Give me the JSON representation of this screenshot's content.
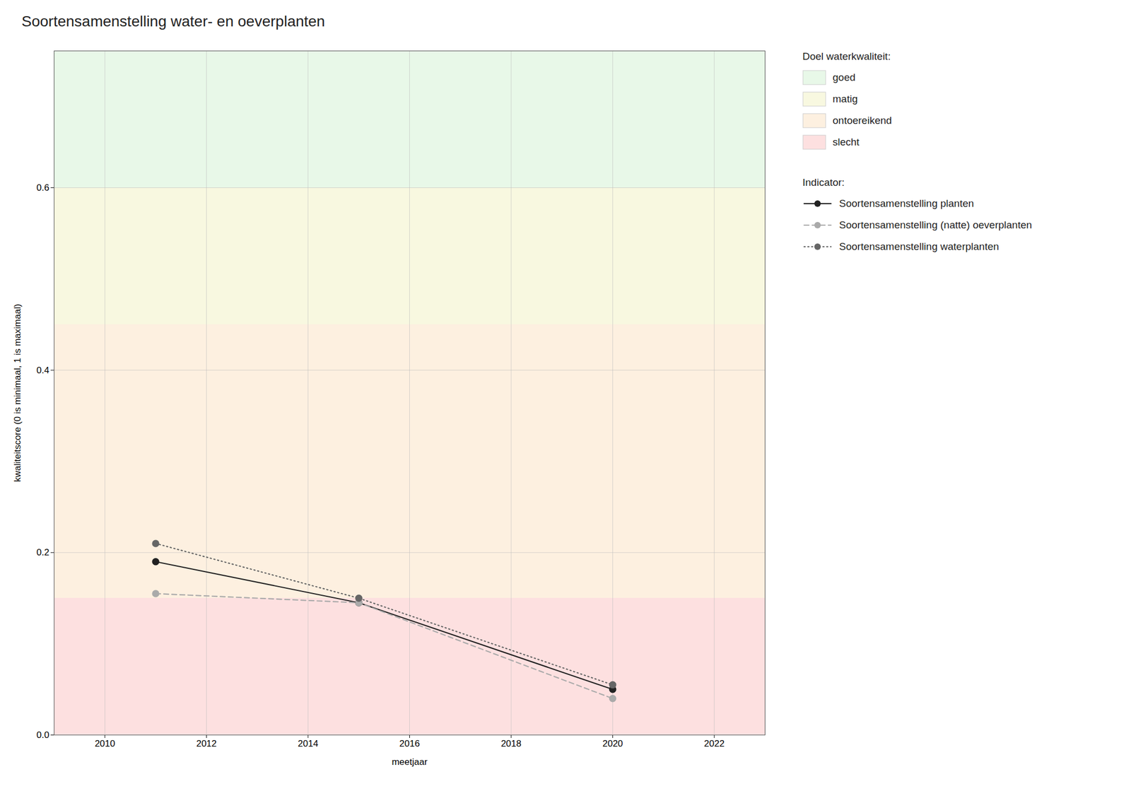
{
  "chart_data": {
    "type": "line",
    "title": "Soortensamenstelling water- en oeverplanten",
    "xlabel": "meetjaar",
    "ylabel": "kwaliteitscore (0 is minimaal, 1 is maximaal)",
    "xlim": [
      2009,
      2023
    ],
    "ylim": [
      0,
      0.75
    ],
    "xticks": [
      2010,
      2012,
      2014,
      2016,
      2018,
      2020,
      2022
    ],
    "yticks": [
      {
        "value": 0,
        "label": "0.0"
      },
      0.2,
      0.4,
      0.6
    ],
    "grid": true,
    "legend": "right",
    "zones_title": "Doel waterkwaliteit:",
    "zones": [
      {
        "name": "goed",
        "ymin": 0.6,
        "ymax": 0.75,
        "color": "#e8f8e8"
      },
      {
        "name": "matig",
        "ymin": 0.45,
        "ymax": 0.6,
        "color": "#f8f8e0"
      },
      {
        "name": "ontoereikend",
        "ymin": 0.15,
        "ymax": 0.45,
        "color": "#fdf0e0"
      },
      {
        "name": "slecht",
        "ymin": 0.0,
        "ymax": 0.15,
        "color": "#fde0e0"
      }
    ],
    "series_title": "Indicator:",
    "x": [
      2011,
      2015,
      2020
    ],
    "series": [
      {
        "name": "Soortensamenstelling planten",
        "color": "#222222",
        "line_style": "solid",
        "marker": "circle",
        "values": [
          0.19,
          0.145,
          0.05
        ]
      },
      {
        "name": "Soortensamenstelling (natte) oeverplanten",
        "color": "#aaaaaa",
        "line_style": "dashed",
        "marker": "circle",
        "values": [
          0.155,
          0.145,
          0.04
        ]
      },
      {
        "name": "Soortensamenstelling waterplanten",
        "color": "#666666",
        "line_style": "dotted",
        "marker": "circle",
        "values": [
          0.21,
          0.15,
          0.055
        ]
      }
    ]
  }
}
